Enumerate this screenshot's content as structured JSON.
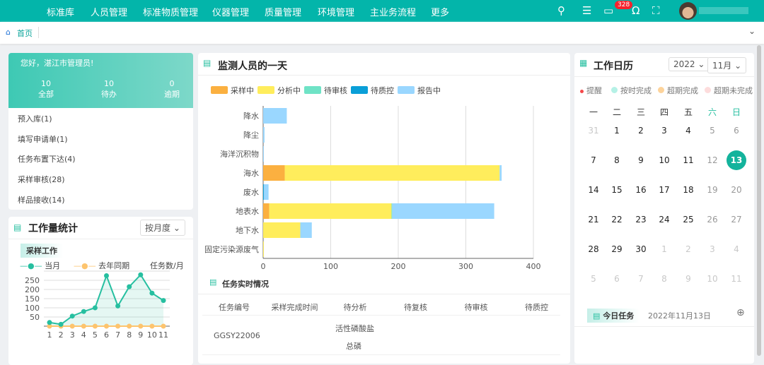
{
  "nav": {
    "items": [
      "标准库",
      "人员管理",
      "标准物质管理",
      "仪器管理",
      "质量管理",
      "环境管理",
      "主业务流程",
      "更多"
    ],
    "badge": "328",
    "icons": [
      "search-icon",
      "layers-icon",
      "monitor-icon",
      "omega-icon",
      "fullscreen-icon"
    ]
  },
  "breadcrumb": {
    "home": "首页"
  },
  "welcome": {
    "greeting": "您好，湛江市管理员!",
    "stats": [
      {
        "value": "10",
        "label": "全部"
      },
      {
        "value": "10",
        "label": "待办"
      },
      {
        "value": "0",
        "label": "逾期"
      }
    ]
  },
  "todos": [
    "预入库(1)",
    "填写申请单(1)",
    "任务布置下达(4)",
    "采样审核(28)",
    "样品接收(14)"
  ],
  "workload": {
    "title": "工作量统计",
    "period": "按月度",
    "section": "采样工作",
    "unit": "任务数/月",
    "chart_data": {
      "type": "line",
      "x": [
        1,
        2,
        3,
        4,
        5,
        6,
        7,
        8,
        9,
        10,
        11
      ],
      "yticks": [
        50,
        100,
        150,
        200,
        250
      ],
      "ylim": [
        0,
        300
      ],
      "series": [
        {
          "name": "当月",
          "color": "#26bfa0",
          "values": [
            20,
            10,
            55,
            80,
            100,
            275,
            110,
            215,
            280,
            180,
            140
          ]
        },
        {
          "name": "去年同期",
          "color": "#fdc46e",
          "values": [
            0,
            0,
            0,
            0,
            0,
            0,
            0,
            0,
            0,
            0,
            0
          ]
        }
      ]
    }
  },
  "monitor": {
    "title": "监测人员的一天",
    "chart_data": {
      "type": "bar",
      "orientation": "horizontal",
      "stacked": true,
      "xlim": [
        0,
        400
      ],
      "xticks": [
        0,
        100,
        200,
        300,
        400
      ],
      "categories": [
        "降水",
        "降尘",
        "海洋沉积物",
        "海水",
        "废水",
        "地表水",
        "地下水",
        "固定污染源废气"
      ],
      "series": [
        {
          "name": "采样中",
          "color": "#fbb040",
          "values": [
            0,
            0,
            0,
            32,
            0,
            9,
            0,
            0
          ]
        },
        {
          "name": "分析中",
          "color": "#ffed5c",
          "values": [
            0,
            0,
            0,
            318,
            0,
            181,
            55,
            1
          ]
        },
        {
          "name": "待审核",
          "color": "#6fe3c6",
          "values": [
            0,
            0,
            0,
            0,
            0,
            1,
            0,
            0
          ]
        },
        {
          "name": "待质控",
          "color": "#0a9fd8",
          "values": [
            0,
            0,
            0,
            0,
            1,
            0,
            0,
            0
          ]
        },
        {
          "name": "报告中",
          "color": "#9ad7ff",
          "values": [
            35,
            2,
            1,
            3,
            7,
            151,
            17,
            0
          ]
        }
      ]
    }
  },
  "tasks": {
    "title": "任务实时情况",
    "columns": [
      "任务编号",
      "采样完成时间",
      "待分析",
      "待复核",
      "待审核",
      "待质控"
    ],
    "rows": [
      {
        "id": "GGSY22006",
        "time": "",
        "analysis": [
          "活性磷酸盐",
          "总磷"
        ],
        "recheck": "",
        "review": "",
        "qc": ""
      }
    ]
  },
  "calendar": {
    "title": "工作日历",
    "year": "2022",
    "month": "11月",
    "legend": [
      {
        "label": "提醒",
        "color": "#f5484a"
      },
      {
        "label": "按时完成",
        "color": "#b5f1e6"
      },
      {
        "label": "超期完成",
        "color": "#fdd39b"
      },
      {
        "label": "超期未完成",
        "color": "#fddcdc"
      }
    ],
    "weekdays": [
      "一",
      "二",
      "三",
      "四",
      "五",
      "六",
      "日"
    ],
    "weeks": [
      [
        "31",
        "1",
        "2",
        "3",
        "4",
        "5",
        "6"
      ],
      [
        "7",
        "8",
        "9",
        "10",
        "11",
        "12",
        "13"
      ],
      [
        "14",
        "15",
        "16",
        "17",
        "18",
        "19",
        "20"
      ],
      [
        "21",
        "22",
        "23",
        "24",
        "25",
        "26",
        "27"
      ],
      [
        "28",
        "29",
        "30",
        "1",
        "2",
        "3",
        "4"
      ],
      [
        "5",
        "6",
        "7",
        "8",
        "9",
        "10",
        "11"
      ]
    ],
    "selected": "13",
    "today_title": "今日任务",
    "today_date": "2022年11月13日"
  }
}
